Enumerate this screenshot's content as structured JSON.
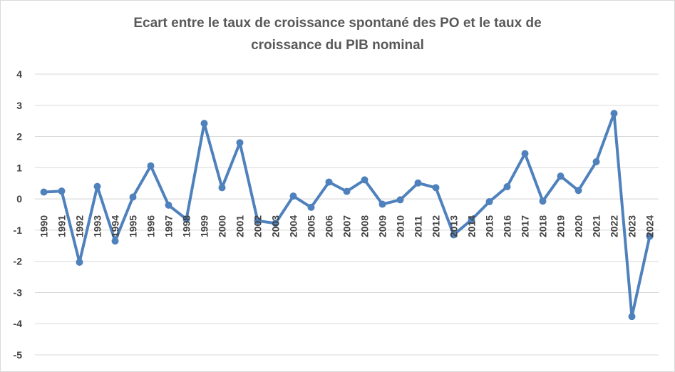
{
  "chart_data": {
    "type": "line",
    "title_lines": [
      "Ecart entre le taux de croissance spontané des PO et le taux de",
      "croissance du PIB nominal"
    ],
    "xlabel": "",
    "ylabel": "",
    "ylim": [
      -5,
      4
    ],
    "yticks": [
      "4",
      "3",
      "2",
      "1",
      "0",
      "-1",
      "-2",
      "-3",
      "-4",
      "-5"
    ],
    "grid": true,
    "legend": "none",
    "color": "#4f81bd",
    "categories": [
      "1990",
      "1991",
      "1992",
      "1993",
      "1994",
      "1995",
      "1996",
      "1997",
      "1998",
      "1999",
      "2000",
      "2001",
      "2002",
      "2003",
      "2004",
      "2005",
      "2006",
      "2007",
      "2008",
      "2009",
      "2010",
      "2011",
      "2012",
      "2013",
      "2014",
      "2015",
      "2016",
      "2017",
      "2018",
      "2019",
      "2020",
      "2021",
      "2022",
      "2023",
      "2024"
    ],
    "values": [
      0.22,
      0.25,
      -2.03,
      0.4,
      -1.35,
      0.06,
      1.06,
      -0.2,
      -0.65,
      2.42,
      0.36,
      1.8,
      -0.7,
      -0.78,
      0.09,
      -0.27,
      0.54,
      0.24,
      0.61,
      -0.17,
      -0.03,
      0.51,
      0.36,
      -1.15,
      -0.67,
      -0.09,
      0.39,
      1.45,
      -0.07,
      0.73,
      0.27,
      1.19,
      2.74,
      -3.77,
      -1.2
    ]
  }
}
